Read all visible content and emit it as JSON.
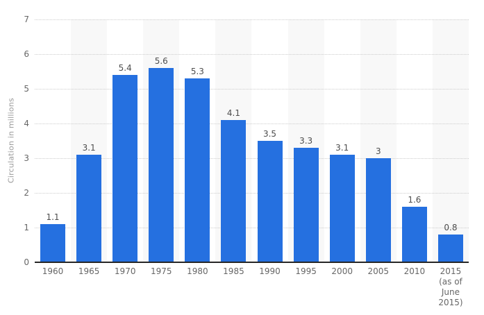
{
  "chart_data": {
    "type": "bar",
    "title": "",
    "xlabel": "",
    "ylabel": "Circulation in millions",
    "categories": [
      "1960",
      "1965",
      "1970",
      "1975",
      "1980",
      "1985",
      "1990",
      "1995",
      "2000",
      "2005",
      "2010",
      "2015 (as of June 2015)"
    ],
    "x_tick_lines": [
      [
        "1960"
      ],
      [
        "1965"
      ],
      [
        "1970"
      ],
      [
        "1975"
      ],
      [
        "1980"
      ],
      [
        "1985"
      ],
      [
        "1990"
      ],
      [
        "1995"
      ],
      [
        "2000"
      ],
      [
        "2005"
      ],
      [
        "2010"
      ],
      [
        "2015",
        "(as of",
        "June",
        "2015)"
      ]
    ],
    "values": [
      1.1,
      3.1,
      5.4,
      5.6,
      5.3,
      4.1,
      3.5,
      3.3,
      3.1,
      3,
      1.6,
      0.8
    ],
    "value_labels": [
      "1.1",
      "3.1",
      "5.4",
      "5.6",
      "5.3",
      "4.1",
      "3.5",
      "3.3",
      "3.1",
      "3",
      "1.6",
      "0.8"
    ],
    "ylim": [
      0,
      7
    ],
    "yticks": [
      0,
      1,
      2,
      3,
      4,
      5,
      6,
      7
    ],
    "grid": "horizontal-dotted",
    "legend": "none",
    "plot_band_alternate_columns": true,
    "colors": {
      "bar": "#2570e0",
      "column_stripe": "#f8f8f8",
      "gridline": "#cccccc",
      "axis_line": "#262626",
      "value_label": "#4d4d4d",
      "tick_label": "#666666",
      "axis_title": "#9b9b9b",
      "background": "#ffffff"
    }
  }
}
